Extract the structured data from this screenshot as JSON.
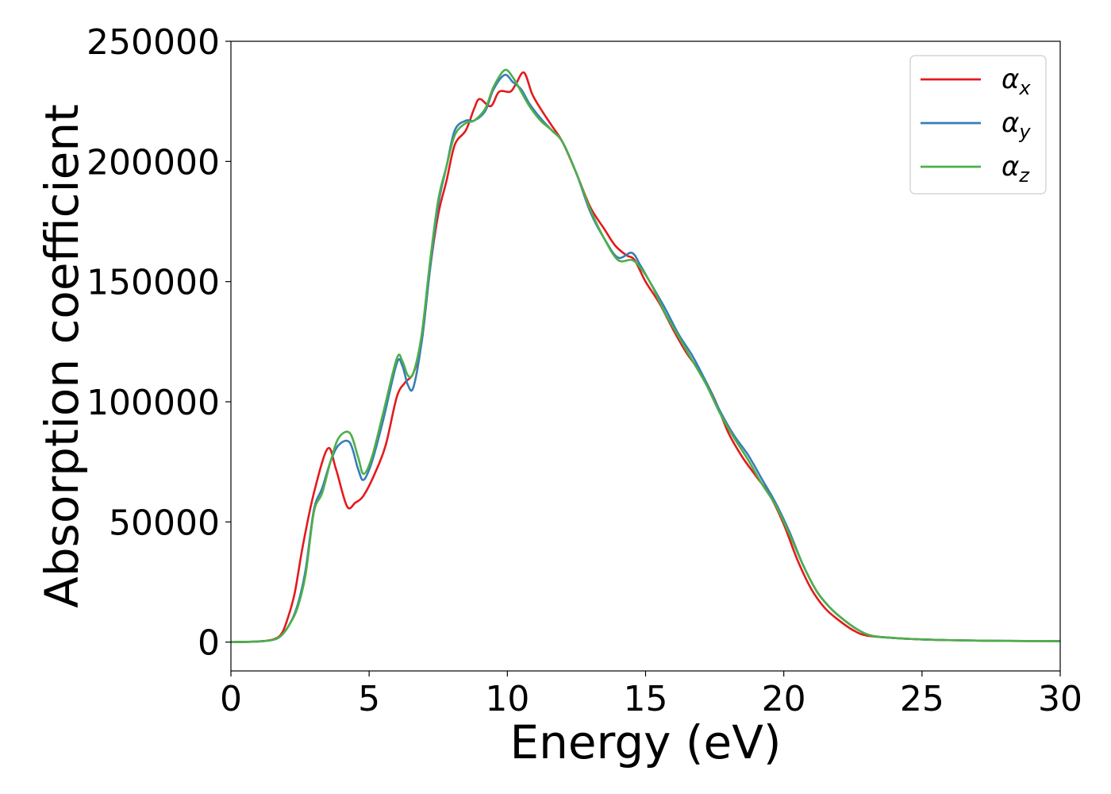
{
  "chart_data": {
    "type": "line",
    "title": "",
    "xlabel": "Energy (eV)",
    "ylabel": "Absorption coefficient",
    "xlim": [
      0,
      30
    ],
    "ylim": [
      -12000,
      250000
    ],
    "x_ticks": [
      0,
      5,
      10,
      15,
      20,
      25,
      30
    ],
    "y_ticks": [
      0,
      50000,
      100000,
      150000,
      200000,
      250000
    ],
    "x_tick_labels": [
      "0",
      "5",
      "10",
      "15",
      "20",
      "25",
      "30"
    ],
    "y_tick_labels": [
      "0",
      "50000",
      "100000",
      "150000",
      "200000",
      "250000"
    ],
    "grid": false,
    "legend_position": "top-right",
    "series": [
      {
        "name": "αx",
        "symbol": "α",
        "subscript": "x",
        "color": "#e41a1c",
        "points": [
          [
            0,
            0
          ],
          [
            1,
            300
          ],
          [
            1.5,
            1000
          ],
          [
            1.8,
            3000
          ],
          [
            2,
            8000
          ],
          [
            2.3,
            20000
          ],
          [
            2.6,
            40000
          ],
          [
            3,
            62000
          ],
          [
            3.5,
            80500
          ],
          [
            3.8,
            72000
          ],
          [
            4.2,
            56500
          ],
          [
            4.5,
            58000
          ],
          [
            4.8,
            61000
          ],
          [
            5.2,
            70000
          ],
          [
            5.6,
            82000
          ],
          [
            6,
            102000
          ],
          [
            6.3,
            108000
          ],
          [
            6.6,
            112000
          ],
          [
            6.9,
            125000
          ],
          [
            7.2,
            155000
          ],
          [
            7.5,
            178000
          ],
          [
            7.8,
            192000
          ],
          [
            8.1,
            207000
          ],
          [
            8.5,
            213000
          ],
          [
            8.8,
            222000
          ],
          [
            9,
            226000
          ],
          [
            9.4,
            223000
          ],
          [
            9.7,
            229000
          ],
          [
            10.1,
            229000
          ],
          [
            10.3,
            232000
          ],
          [
            10.6,
            237000
          ],
          [
            10.9,
            228000
          ],
          [
            11.2,
            222000
          ],
          [
            11.6,
            215000
          ],
          [
            12,
            208000
          ],
          [
            12.5,
            195000
          ],
          [
            13,
            181000
          ],
          [
            13.5,
            172000
          ],
          [
            13.9,
            165000
          ],
          [
            14.3,
            161000
          ],
          [
            14.6,
            159000
          ],
          [
            15,
            150000
          ],
          [
            15.5,
            141000
          ],
          [
            16,
            130000
          ],
          [
            16.5,
            120000
          ],
          [
            17,
            112000
          ],
          [
            17.5,
            101000
          ],
          [
            18,
            87000
          ],
          [
            18.5,
            77000
          ],
          [
            19,
            69000
          ],
          [
            19.5,
            61000
          ],
          [
            20,
            49000
          ],
          [
            20.5,
            34000
          ],
          [
            21,
            22000
          ],
          [
            21.5,
            14000
          ],
          [
            22,
            9000
          ],
          [
            22.5,
            5000
          ],
          [
            23,
            2700
          ],
          [
            24,
            1700
          ],
          [
            25,
            1100
          ],
          [
            26,
            800
          ],
          [
            28,
            500
          ],
          [
            30,
            400
          ]
        ]
      },
      {
        "name": "αy",
        "symbol": "α",
        "subscript": "y",
        "color": "#377eb8",
        "points": [
          [
            0,
            0
          ],
          [
            1,
            250
          ],
          [
            1.5,
            900
          ],
          [
            1.8,
            2500
          ],
          [
            2.1,
            7000
          ],
          [
            2.4,
            15000
          ],
          [
            2.7,
            30000
          ],
          [
            3,
            55000
          ],
          [
            3.3,
            64000
          ],
          [
            3.6,
            75000
          ],
          [
            3.9,
            82000
          ],
          [
            4.3,
            83000
          ],
          [
            4.6,
            72000
          ],
          [
            4.8,
            67500
          ],
          [
            5.1,
            75000
          ],
          [
            5.5,
            92000
          ],
          [
            6,
            116000
          ],
          [
            6.2,
            115000
          ],
          [
            6.4,
            107000
          ],
          [
            6.6,
            106000
          ],
          [
            6.9,
            125000
          ],
          [
            7.2,
            155000
          ],
          [
            7.5,
            182000
          ],
          [
            7.8,
            198000
          ],
          [
            8.1,
            213000
          ],
          [
            8.5,
            217000
          ],
          [
            8.8,
            217000
          ],
          [
            9.2,
            221000
          ],
          [
            9.5,
            230000
          ],
          [
            9.9,
            236000
          ],
          [
            10.2,
            233000
          ],
          [
            10.5,
            230000
          ],
          [
            10.8,
            224000
          ],
          [
            11.2,
            218000
          ],
          [
            11.6,
            213000
          ],
          [
            12,
            208000
          ],
          [
            12.5,
            195000
          ],
          [
            13,
            179000
          ],
          [
            13.5,
            168000
          ],
          [
            14,
            160000
          ],
          [
            14.5,
            162000
          ],
          [
            14.8,
            157000
          ],
          [
            15.2,
            149000
          ],
          [
            15.7,
            139000
          ],
          [
            16.2,
            128000
          ],
          [
            16.7,
            119000
          ],
          [
            17.2,
            108000
          ],
          [
            17.7,
            96000
          ],
          [
            18.2,
            86000
          ],
          [
            18.7,
            78000
          ],
          [
            19.2,
            68000
          ],
          [
            19.7,
            58000
          ],
          [
            20.2,
            46000
          ],
          [
            20.7,
            32000
          ],
          [
            21.2,
            21000
          ],
          [
            21.7,
            14000
          ],
          [
            22.2,
            9000
          ],
          [
            22.7,
            5000
          ],
          [
            23.2,
            2600
          ],
          [
            24,
            1700
          ],
          [
            25,
            1100
          ],
          [
            26,
            800
          ],
          [
            28,
            500
          ],
          [
            30,
            400
          ]
        ]
      },
      {
        "name": "αz",
        "symbol": "α",
        "subscript": "z",
        "color": "#4daf4a",
        "points": [
          [
            0,
            0
          ],
          [
            1,
            250
          ],
          [
            1.5,
            900
          ],
          [
            1.8,
            2500
          ],
          [
            2.1,
            7000
          ],
          [
            2.4,
            14000
          ],
          [
            2.7,
            28000
          ],
          [
            3,
            54000
          ],
          [
            3.3,
            62000
          ],
          [
            3.6,
            75000
          ],
          [
            3.9,
            85000
          ],
          [
            4.3,
            87000
          ],
          [
            4.6,
            77000
          ],
          [
            4.8,
            70000
          ],
          [
            5.1,
            77000
          ],
          [
            5.5,
            95000
          ],
          [
            6,
            118000
          ],
          [
            6.2,
            117000
          ],
          [
            6.4,
            111000
          ],
          [
            6.6,
            112000
          ],
          [
            6.9,
            128000
          ],
          [
            7.2,
            158000
          ],
          [
            7.5,
            184000
          ],
          [
            7.8,
            198000
          ],
          [
            8.1,
            211000
          ],
          [
            8.5,
            216000
          ],
          [
            8.8,
            217000
          ],
          [
            9.2,
            222000
          ],
          [
            9.5,
            231000
          ],
          [
            9.9,
            238000
          ],
          [
            10.2,
            235000
          ],
          [
            10.5,
            229000
          ],
          [
            10.8,
            223000
          ],
          [
            11.2,
            217000
          ],
          [
            11.6,
            213000
          ],
          [
            12,
            208000
          ],
          [
            12.5,
            195000
          ],
          [
            13,
            180000
          ],
          [
            13.5,
            168000
          ],
          [
            14,
            159000
          ],
          [
            14.5,
            159000
          ],
          [
            14.8,
            156000
          ],
          [
            15.2,
            149000
          ],
          [
            15.7,
            137000
          ],
          [
            16.2,
            127000
          ],
          [
            16.7,
            117000
          ],
          [
            17.2,
            107000
          ],
          [
            17.7,
            95000
          ],
          [
            18.2,
            85000
          ],
          [
            18.7,
            76000
          ],
          [
            19.2,
            66000
          ],
          [
            19.7,
            57000
          ],
          [
            20.2,
            45000
          ],
          [
            20.7,
            32000
          ],
          [
            21.2,
            21000
          ],
          [
            21.7,
            14000
          ],
          [
            22.2,
            9000
          ],
          [
            22.7,
            5000
          ],
          [
            23.2,
            2600
          ],
          [
            24,
            1700
          ],
          [
            25,
            1100
          ],
          [
            26,
            800
          ],
          [
            28,
            500
          ],
          [
            30,
            400
          ]
        ]
      }
    ]
  }
}
